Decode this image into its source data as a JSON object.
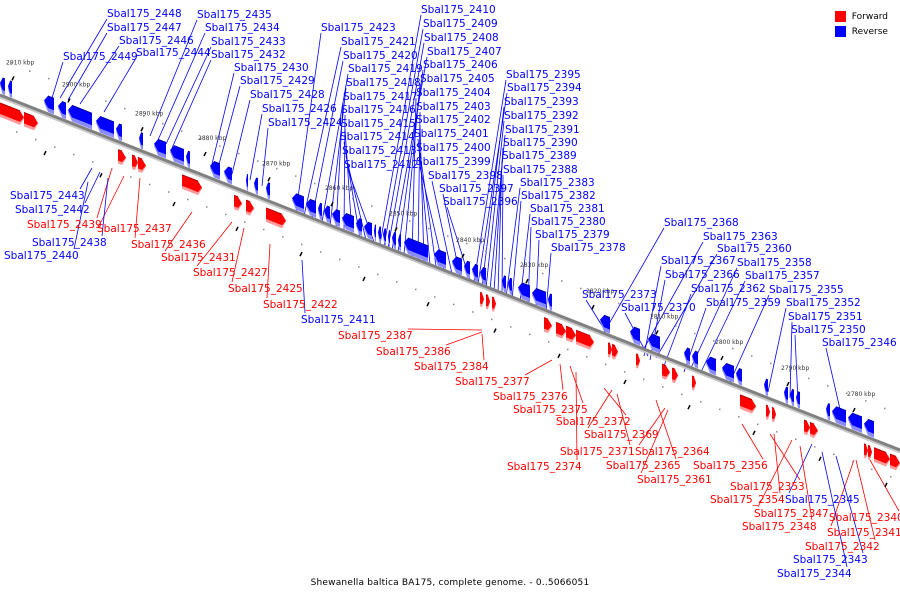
{
  "legend": {
    "items": [
      {
        "label": "Forward",
        "color": "#ff0000"
      },
      {
        "label": "Reverse",
        "color": "#0000ff"
      }
    ]
  },
  "footer": {
    "caption": "Shewanella baltica BA175, complete genome. - 0..5066051"
  },
  "colors": {
    "forward": "#ff0000",
    "reverse": "#0000ff",
    "axis": "#808080"
  },
  "chart_data": {
    "type": "genome-track",
    "title": "Shewanella baltica BA175, complete genome. - 0..5066051",
    "axis_label": "kbp",
    "axis_direction": "descending",
    "visible_range_kbp": [
      2774,
      2913
    ],
    "tick_labels": [
      "2910 kbp",
      "2900 kbp",
      "2890 kbp",
      "2880 kbp",
      "2870 kbp",
      "2860 kbp",
      "2850 kbp",
      "2840 kbp",
      "2830 kbp",
      "2820 kbp",
      "2810 kbp",
      "2800 kbp",
      "2790 kbp",
      "2780 kbp"
    ],
    "tick_values_kbp": [
      2910,
      2900,
      2890,
      2880,
      2870,
      2860,
      2850,
      2840,
      2830,
      2820,
      2810,
      2800,
      2790,
      2780
    ],
    "legend": [
      "Forward",
      "Reverse"
    ],
    "reverse_labels_top": [
      "Sbal175_2448",
      "Sbal175_2447",
      "Sbal175_2446",
      "Sbal175_2449",
      "Sbal175_2444",
      "Sbal175_2435",
      "Sbal175_2434",
      "Sbal175_2433",
      "Sbal175_2432",
      "Sbal175_2430",
      "Sbal175_2429",
      "Sbal175_2428",
      "Sbal175_2426",
      "Sbal175_2424",
      "Sbal175_2423",
      "Sbal175_2421",
      "Sbal175_2420",
      "Sbal175_2419",
      "Sbal175_2418",
      "Sbal175_2417",
      "Sbal175_2416",
      "Sbal175_2415",
      "Sbal175_2414",
      "Sbal175_2413",
      "Sbal175_2412",
      "Sbal175_2410",
      "Sbal175_2409",
      "Sbal175_2408",
      "Sbal175_2407",
      "Sbal175_2406",
      "Sbal175_2405",
      "Sbal175_2404",
      "Sbal175_2403",
      "Sbal175_2402",
      "Sbal175_2401",
      "Sbal175_2400",
      "Sbal175_2399",
      "Sbal175_2398",
      "Sbal175_2397",
      "Sbal175_2396",
      "Sbal175_2395",
      "Sbal175_2394",
      "Sbal175_2393",
      "Sbal175_2392",
      "Sbal175_2391",
      "Sbal175_2390",
      "Sbal175_2389",
      "Sbal175_2388",
      "Sbal175_2383",
      "Sbal175_2382",
      "Sbal175_2381",
      "Sbal175_2380",
      "Sbal175_2379",
      "Sbal175_2378",
      "Sbal175_2368",
      "Sbal175_2363",
      "Sbal175_2360",
      "Sbal175_2367",
      "Sbal175_2358",
      "Sbal175_2366",
      "Sbal175_2357",
      "Sbal175_2362",
      "Sbal175_2355",
      "Sbal175_2373",
      "Sbal175_2359",
      "Sbal175_2352",
      "Sbal175_2370",
      "Sbal175_2351",
      "Sbal175_2350",
      "Sbal175_2346"
    ],
    "bottom_labels": [
      {
        "name": "Sbal175_2443",
        "strand": "reverse"
      },
      {
        "name": "Sbal175_2442",
        "strand": "reverse"
      },
      {
        "name": "Sbal175_2439",
        "strand": "forward"
      },
      {
        "name": "Sbal175_2437",
        "strand": "forward"
      },
      {
        "name": "Sbal175_2438",
        "strand": "reverse"
      },
      {
        "name": "Sbal175_2436",
        "strand": "forward"
      },
      {
        "name": "Sbal175_2440",
        "strand": "reverse"
      },
      {
        "name": "Sbal175_2431",
        "strand": "forward"
      },
      {
        "name": "Sbal175_2427",
        "strand": "forward"
      },
      {
        "name": "Sbal175_2425",
        "strand": "forward"
      },
      {
        "name": "Sbal175_2422",
        "strand": "forward"
      },
      {
        "name": "Sbal175_2411",
        "strand": "reverse"
      },
      {
        "name": "Sbal175_2387",
        "strand": "forward"
      },
      {
        "name": "Sbal175_2386",
        "strand": "forward"
      },
      {
        "name": "Sbal175_2384",
        "strand": "forward"
      },
      {
        "name": "Sbal175_2377",
        "strand": "forward"
      },
      {
        "name": "Sbal175_2376",
        "strand": "forward"
      },
      {
        "name": "Sbal175_2375",
        "strand": "forward"
      },
      {
        "name": "Sbal175_2372",
        "strand": "forward"
      },
      {
        "name": "Sbal175_2369",
        "strand": "forward"
      },
      {
        "name": "Sbal175_2371",
        "strand": "forward"
      },
      {
        "name": "Sbal175_2364",
        "strand": "forward"
      },
      {
        "name": "Sbal175_2374",
        "strand": "forward"
      },
      {
        "name": "Sbal175_2365",
        "strand": "forward"
      },
      {
        "name": "Sbal175_2361",
        "strand": "forward"
      },
      {
        "name": "Sbal175_2356",
        "strand": "forward"
      },
      {
        "name": "Sbal175_2353",
        "strand": "forward"
      },
      {
        "name": "Sbal175_2354",
        "strand": "forward"
      },
      {
        "name": "Sbal175_2345",
        "strand": "reverse"
      },
      {
        "name": "Sbal175_2347",
        "strand": "forward"
      },
      {
        "name": "Sbal175_2340",
        "strand": "forward"
      },
      {
        "name": "Sbal175_2348",
        "strand": "forward"
      },
      {
        "name": "Sbal175_2341",
        "strand": "forward"
      },
      {
        "name": "Sbal175_2342",
        "strand": "forward"
      },
      {
        "name": "Sbal175_2343",
        "strand": "reverse"
      },
      {
        "name": "Sbal175_2344",
        "strand": "reverse"
      }
    ]
  },
  "labels": [
    {
      "t": "Sbal175_2448",
      "s": "r"
    },
    {
      "t": "Sbal175_2447",
      "s": "r"
    },
    {
      "t": "Sbal175_2446",
      "s": "r"
    },
    {
      "t": "Sbal175_2449",
      "s": "r"
    },
    {
      "t": "Sbal175_2444",
      "s": "r"
    },
    {
      "t": "Sbal175_2435",
      "s": "r"
    },
    {
      "t": "Sbal175_2434",
      "s": "r"
    },
    {
      "t": "Sbal175_2433",
      "s": "r"
    },
    {
      "t": "Sbal175_2432",
      "s": "r"
    },
    {
      "t": "Sbal175_2430",
      "s": "r"
    },
    {
      "t": "Sbal175_2429",
      "s": "r"
    },
    {
      "t": "Sbal175_2428",
      "s": "r"
    },
    {
      "t": "Sbal175_2426",
      "s": "r"
    },
    {
      "t": "Sbal175_2424",
      "s": "r"
    },
    {
      "t": "Sbal175_2423",
      "s": "r"
    },
    {
      "t": "Sbal175_2421",
      "s": "r"
    },
    {
      "t": "Sbal175_2420",
      "s": "r"
    },
    {
      "t": "Sbal175_2419",
      "s": "r"
    },
    {
      "t": "Sbal175_2418",
      "s": "r"
    },
    {
      "t": "Sbal175_2417",
      "s": "r"
    },
    {
      "t": "Sbal175_2416",
      "s": "r"
    },
    {
      "t": "Sbal175_2415",
      "s": "r"
    },
    {
      "t": "Sbal175_2414",
      "s": "r"
    },
    {
      "t": "Sbal175_2413",
      "s": "r"
    },
    {
      "t": "Sbal175_2412",
      "s": "r"
    },
    {
      "t": "Sbal175_2410",
      "s": "r"
    },
    {
      "t": "Sbal175_2409",
      "s": "r"
    },
    {
      "t": "Sbal175_2408",
      "s": "r"
    },
    {
      "t": "Sbal175_2407",
      "s": "r"
    },
    {
      "t": "Sbal175_2406",
      "s": "r"
    },
    {
      "t": "Sbal175_2405",
      "s": "r"
    },
    {
      "t": "Sbal175_2404",
      "s": "r"
    },
    {
      "t": "Sbal175_2403",
      "s": "r"
    },
    {
      "t": "Sbal175_2402",
      "s": "r"
    },
    {
      "t": "Sbal175_2401",
      "s": "r"
    },
    {
      "t": "Sbal175_2400",
      "s": "r"
    },
    {
      "t": "Sbal175_2399",
      "s": "r"
    },
    {
      "t": "Sbal175_2398",
      "s": "r"
    },
    {
      "t": "Sbal175_2397",
      "s": "r"
    },
    {
      "t": "Sbal175_2396",
      "s": "r"
    },
    {
      "t": "Sbal175_2395",
      "s": "r"
    },
    {
      "t": "Sbal175_2394",
      "s": "r"
    },
    {
      "t": "Sbal175_2393",
      "s": "r"
    },
    {
      "t": "Sbal175_2392",
      "s": "r"
    },
    {
      "t": "Sbal175_2391",
      "s": "r"
    },
    {
      "t": "Sbal175_2390",
      "s": "r"
    },
    {
      "t": "Sbal175_2389",
      "s": "r"
    },
    {
      "t": "Sbal175_2388",
      "s": "r"
    },
    {
      "t": "Sbal175_2383",
      "s": "r"
    },
    {
      "t": "Sbal175_2382",
      "s": "r"
    },
    {
      "t": "Sbal175_2381",
      "s": "r"
    },
    {
      "t": "Sbal175_2380",
      "s": "r"
    },
    {
      "t": "Sbal175_2379",
      "s": "r"
    },
    {
      "t": "Sbal175_2378",
      "s": "r"
    },
    {
      "t": "Sbal175_2368",
      "s": "r"
    },
    {
      "t": "Sbal175_2363",
      "s": "r"
    },
    {
      "t": "Sbal175_2360",
      "s": "r"
    },
    {
      "t": "Sbal175_2367",
      "s": "r"
    },
    {
      "t": "Sbal175_2358",
      "s": "r"
    },
    {
      "t": "Sbal175_2366",
      "s": "r"
    },
    {
      "t": "Sbal175_2357",
      "s": "r"
    },
    {
      "t": "Sbal175_2362",
      "s": "r"
    },
    {
      "t": "Sbal175_2355",
      "s": "r"
    },
    {
      "t": "Sbal175_2373",
      "s": "r"
    },
    {
      "t": "Sbal175_2359",
      "s": "r"
    },
    {
      "t": "Sbal175_2352",
      "s": "r"
    },
    {
      "t": "Sbal175_2370",
      "s": "r"
    },
    {
      "t": "Sbal175_2351",
      "s": "r"
    },
    {
      "t": "Sbal175_2350",
      "s": "r"
    },
    {
      "t": "Sbal175_2346",
      "s": "r"
    },
    {
      "t": "Sbal175_2443",
      "s": "r"
    },
    {
      "t": "Sbal175_2442",
      "s": "r"
    },
    {
      "t": "Sbal175_2439",
      "s": "f"
    },
    {
      "t": "Sbal175_2437",
      "s": "f"
    },
    {
      "t": "Sbal175_2438",
      "s": "r"
    },
    {
      "t": "Sbal175_2436",
      "s": "f"
    },
    {
      "t": "Sbal175_2440",
      "s": "r"
    },
    {
      "t": "Sbal175_2431",
      "s": "f"
    },
    {
      "t": "Sbal175_2427",
      "s": "f"
    },
    {
      "t": "Sbal175_2425",
      "s": "f"
    },
    {
      "t": "Sbal175_2422",
      "s": "f"
    },
    {
      "t": "Sbal175_2411",
      "s": "r"
    },
    {
      "t": "Sbal175_2387",
      "s": "f"
    },
    {
      "t": "Sbal175_2386",
      "s": "f"
    },
    {
      "t": "Sbal175_2384",
      "s": "f"
    },
    {
      "t": "Sbal175_2377",
      "s": "f"
    },
    {
      "t": "Sbal175_2376",
      "s": "f"
    },
    {
      "t": "Sbal175_2375",
      "s": "f"
    },
    {
      "t": "Sbal175_2372",
      "s": "f"
    },
    {
      "t": "Sbal175_2369",
      "s": "f"
    },
    {
      "t": "Sbal175_2371",
      "s": "f"
    },
    {
      "t": "Sbal175_2364",
      "s": "f"
    },
    {
      "t": "Sbal175_2374",
      "s": "f"
    },
    {
      "t": "Sbal175_2365",
      "s": "f"
    },
    {
      "t": "Sbal175_2361",
      "s": "f"
    },
    {
      "t": "Sbal175_2356",
      "s": "f"
    },
    {
      "t": "Sbal175_2353",
      "s": "f"
    },
    {
      "t": "Sbal175_2354",
      "s": "f"
    },
    {
      "t": "Sbal175_2345",
      "s": "r"
    },
    {
      "t": "Sbal175_2347",
      "s": "f"
    },
    {
      "t": "Sbal175_2340",
      "s": "f"
    },
    {
      "t": "Sbal175_2348",
      "s": "f"
    },
    {
      "t": "Sbal175_2341",
      "s": "f"
    },
    {
      "t": "Sbal175_2342",
      "s": "f"
    },
    {
      "t": "Sbal175_2343",
      "s": "r"
    },
    {
      "t": "Sbal175_2344",
      "s": "r"
    }
  ],
  "ticks": [
    "2910 kbp",
    "2900 kbp",
    "2890 kbp",
    "2880 kbp",
    "2870 kbp",
    "2860 kbp",
    "2850 kbp",
    "2840 kbp",
    "2830 kbp",
    "2820 kbp",
    "2810 kbp",
    "2800 kbp",
    "2790 kbp",
    "2780 kbp"
  ]
}
